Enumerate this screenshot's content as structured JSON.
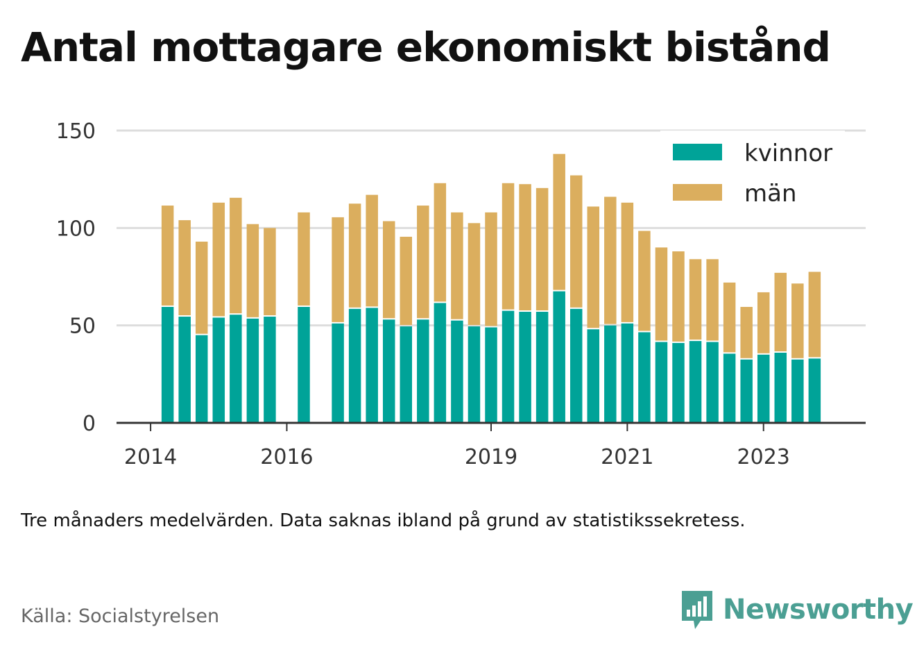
{
  "title": "Antal mottagare ekonomiskt bistånd",
  "note": "Tre månaders medelvärden. Data saknas ibland på grund av statistikssekretess.",
  "source": "Källa: Socialstyrelsen",
  "brand": {
    "name": "Newsworthy",
    "icon": "newsworthy-logo-icon",
    "color": "#4b9f93"
  },
  "colors": {
    "kvinnor": "#00a398",
    "man": "#dbae5e",
    "grid": "#dddddd",
    "axis": "#333333"
  },
  "chart_data": {
    "type": "bar",
    "stacked": true,
    "title": "Antal mottagare ekonomiskt bistånd",
    "xlabel": "",
    "ylabel": "",
    "ylim": [
      0,
      150
    ],
    "yticks": [
      0,
      50,
      100,
      150
    ],
    "xticks": [
      "2014",
      "2016",
      "2019",
      "2021",
      "2023"
    ],
    "xticks_at": [
      2014.0,
      2016.0,
      2019.0,
      2021.0,
      2023.0
    ],
    "xlim": [
      2013.5,
      2024.5
    ],
    "grid": true,
    "legend_position": "top-right",
    "x": [
      2014.25,
      2014.5,
      2014.75,
      2015.0,
      2015.25,
      2015.5,
      2015.75,
      2016.0,
      2016.25,
      2016.5,
      2016.75,
      2017.0,
      2017.25,
      2017.5,
      2017.75,
      2018.0,
      2018.25,
      2018.5,
      2018.75,
      2019.0,
      2019.25,
      2019.5,
      2019.75,
      2020.0,
      2020.25,
      2020.5,
      2020.75,
      2021.0,
      2021.25,
      2021.5,
      2021.75,
      2022.0,
      2022.25,
      2022.5,
      2022.75,
      2023.0,
      2023.25,
      2023.5,
      2023.75,
      2024.0
    ],
    "series": [
      {
        "name": "kvinnor",
        "color": "#00a398",
        "values": [
          59.5,
          54.5,
          45,
          54,
          55.5,
          53.5,
          54.5,
          null,
          59.5,
          null,
          51,
          58.5,
          59,
          53,
          49.5,
          53,
          61.5,
          52.5,
          49.5,
          49,
          57.5,
          57,
          57,
          67.5,
          58.5,
          48,
          50,
          51,
          46.5,
          41.5,
          41,
          42,
          41.5,
          35.5,
          32.5,
          35,
          36,
          32.5,
          33,
          null
        ]
      },
      {
        "name": "män",
        "color": "#dbae5e",
        "values": [
          52,
          49.5,
          48,
          59,
          60,
          48.5,
          45.5,
          null,
          48.5,
          null,
          54.5,
          54,
          58,
          50.5,
          46,
          58.5,
          61.5,
          55.5,
          53,
          59,
          65.5,
          65.5,
          63.5,
          70.5,
          68.5,
          63,
          66,
          62,
          52,
          48.5,
          47,
          42,
          42.5,
          36.5,
          27,
          32,
          41,
          39,
          44.5,
          null
        ]
      }
    ]
  }
}
